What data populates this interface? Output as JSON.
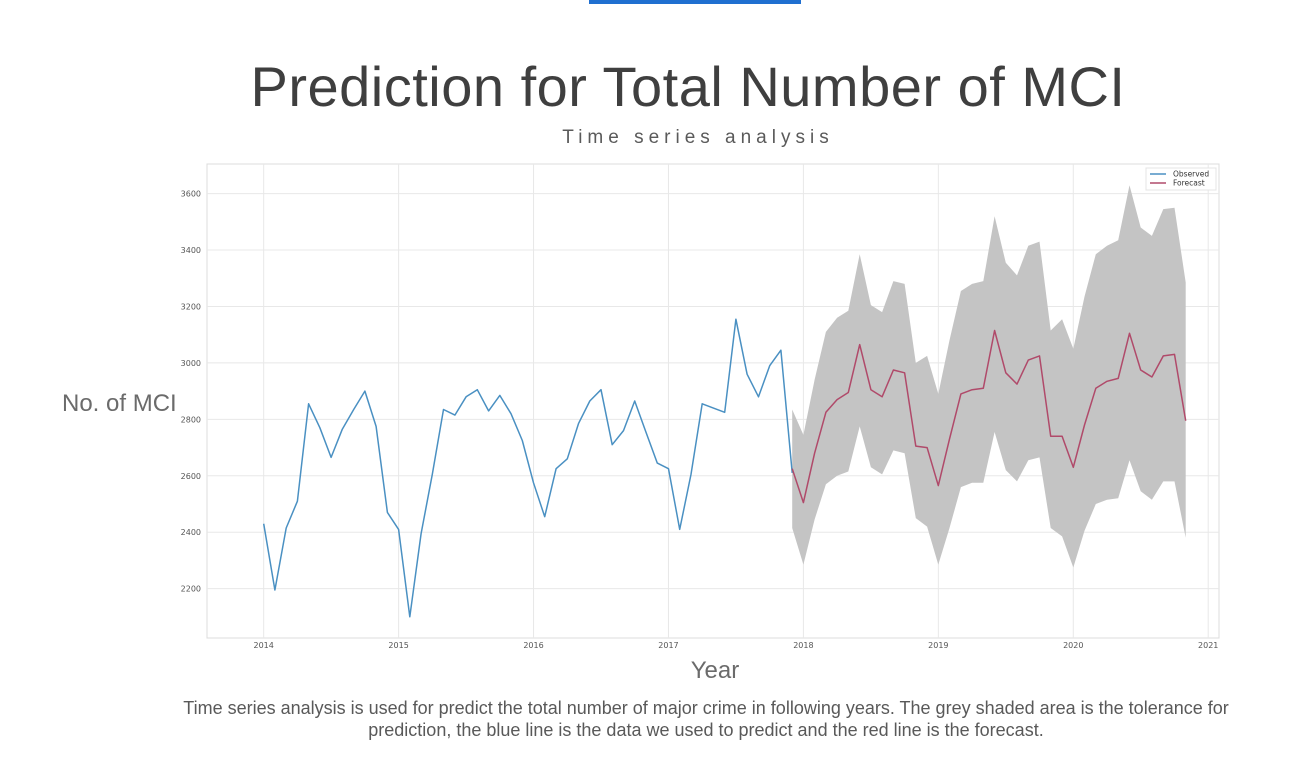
{
  "page": {
    "title": "Prediction for Total Number of MCI",
    "subtitle": "Time series analysis",
    "ylabel": "No. of MCI",
    "xlabel": "Year",
    "caption": "Time series analysis is used for predict the total number of major crime in following years. The grey shaded area is the tolerance for prediction, the blue line is the data we used to predict and the red line is the forecast."
  },
  "colors": {
    "accent": "#1f6fd0",
    "observed": "#4a90c2",
    "forecast": "#b04a6a",
    "band": "#c4c4c4",
    "grid": "#e8e8e8",
    "frame": "#dcdcdc",
    "tick_text": "#555555"
  },
  "chart_data": {
    "type": "line",
    "xlim": [
      2013.58,
      2021.08
    ],
    "ylim": [
      2025,
      3705
    ],
    "grid": true,
    "legend_placement": "top-right",
    "xticks": [
      "2014",
      "2015",
      "2016",
      "2017",
      "2018",
      "2019",
      "2020",
      "2021"
    ],
    "yticks": [
      "2200",
      "2400",
      "2600",
      "2800",
      "3000",
      "3200",
      "3400",
      "3600"
    ],
    "series": [
      {
        "name": "Observed",
        "x": [
          2014.0,
          2014.083,
          2014.167,
          2014.25,
          2014.333,
          2014.417,
          2014.5,
          2014.583,
          2014.667,
          2014.75,
          2014.833,
          2014.917,
          2015.0,
          2015.083,
          2015.167,
          2015.25,
          2015.333,
          2015.417,
          2015.5,
          2015.583,
          2015.667,
          2015.75,
          2015.833,
          2015.917,
          2016.0,
          2016.083,
          2016.167,
          2016.25,
          2016.333,
          2016.417,
          2016.5,
          2016.583,
          2016.667,
          2016.75,
          2016.833,
          2016.917,
          2017.0,
          2017.083,
          2017.167,
          2017.25,
          2017.333,
          2017.417,
          2017.5,
          2017.583,
          2017.667,
          2017.75,
          2017.833,
          2017.917
        ],
        "values": [
          2430,
          2195,
          2415,
          2510,
          2855,
          2770,
          2665,
          2765,
          2835,
          2900,
          2775,
          2470,
          2410,
          2100,
          2395,
          2605,
          2835,
          2815,
          2880,
          2905,
          2830,
          2885,
          2820,
          2725,
          2575,
          2455,
          2625,
          2660,
          2785,
          2865,
          2905,
          2710,
          2760,
          2865,
          2755,
          2645,
          2625,
          2410,
          2605,
          2855,
          2840,
          2825,
          3155,
          2960,
          2880,
          2990,
          3045,
          2610
        ]
      },
      {
        "name": "Forecast",
        "x": [
          2017.917,
          2018.0,
          2018.083,
          2018.167,
          2018.25,
          2018.333,
          2018.417,
          2018.5,
          2018.583,
          2018.667,
          2018.75,
          2018.833,
          2018.917,
          2019.0,
          2019.083,
          2019.167,
          2019.25,
          2019.333,
          2019.417,
          2019.5,
          2019.583,
          2019.667,
          2019.75,
          2019.833,
          2019.917,
          2020.0,
          2020.083,
          2020.167,
          2020.25,
          2020.333,
          2020.417,
          2020.5,
          2020.583,
          2020.667,
          2020.75,
          2020.833
        ],
        "values": [
          2625,
          2505,
          2680,
          2825,
          2870,
          2895,
          3065,
          2905,
          2880,
          2975,
          2965,
          2705,
          2700,
          2565,
          2730,
          2890,
          2905,
          2910,
          3115,
          2965,
          2925,
          3010,
          3025,
          2740,
          2740,
          2630,
          2780,
          2910,
          2935,
          2945,
          3105,
          2975,
          2950,
          3025,
          3030,
          2795
        ]
      }
    ],
    "band": {
      "x": [
        2017.917,
        2018.0,
        2018.083,
        2018.167,
        2018.25,
        2018.333,
        2018.417,
        2018.5,
        2018.583,
        2018.667,
        2018.75,
        2018.833,
        2018.917,
        2019.0,
        2019.083,
        2019.167,
        2019.25,
        2019.333,
        2019.417,
        2019.5,
        2019.583,
        2019.667,
        2019.75,
        2019.833,
        2019.917,
        2020.0,
        2020.083,
        2020.167,
        2020.25,
        2020.333,
        2020.417,
        2020.5,
        2020.583,
        2020.667,
        2020.75,
        2020.833
      ],
      "upper": [
        2835,
        2745,
        2940,
        3110,
        3160,
        3185,
        3385,
        3205,
        3180,
        3290,
        3280,
        3000,
        3025,
        2890,
        3080,
        3255,
        3280,
        3290,
        3520,
        3355,
        3310,
        3415,
        3430,
        3115,
        3155,
        3050,
        3235,
        3385,
        3415,
        3435,
        3630,
        3480,
        3450,
        3545,
        3550,
        3285
      ],
      "lower": [
        2415,
        2285,
        2445,
        2570,
        2600,
        2615,
        2775,
        2630,
        2605,
        2690,
        2680,
        2450,
        2420,
        2285,
        2415,
        2560,
        2575,
        2575,
        2755,
        2620,
        2580,
        2655,
        2665,
        2415,
        2385,
        2275,
        2405,
        2500,
        2515,
        2520,
        2655,
        2545,
        2515,
        2580,
        2580,
        2380
      ]
    }
  }
}
